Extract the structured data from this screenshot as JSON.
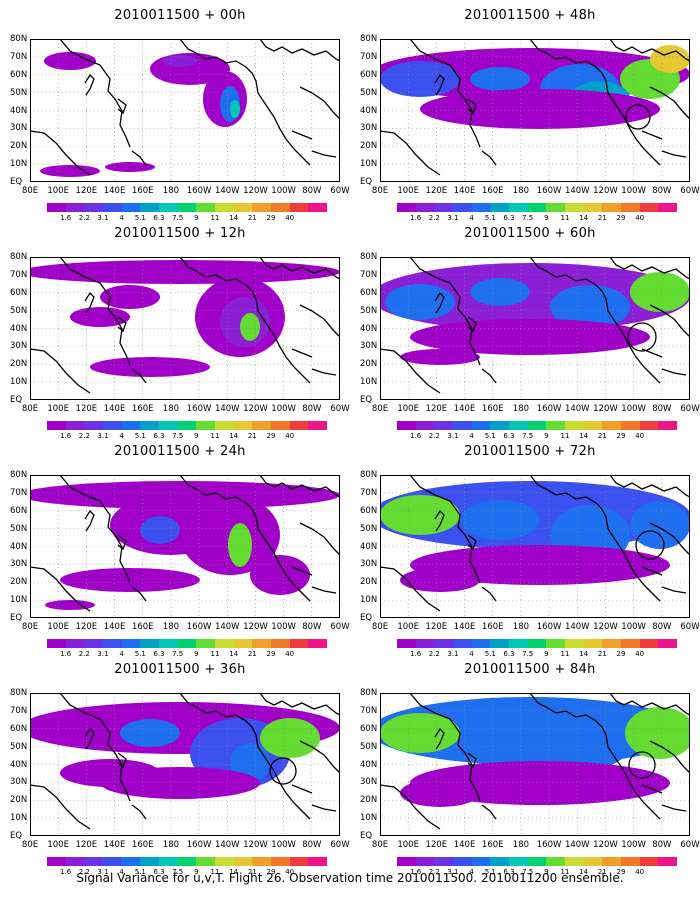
{
  "panels": [
    {
      "title": "2010011500 + 00h"
    },
    {
      "title": "2010011500 + 48h"
    },
    {
      "title": "2010011500 + 12h"
    },
    {
      "title": "2010011500 + 60h"
    },
    {
      "title": "2010011500 + 24h"
    },
    {
      "title": "2010011500 + 72h"
    },
    {
      "title": "2010011500 + 36h"
    },
    {
      "title": "2010011500 + 84h"
    }
  ],
  "lat_labels": [
    "80N",
    "70N",
    "60N",
    "50N",
    "40N",
    "30N",
    "20N",
    "10N",
    "EQ"
  ],
  "lon_labels": [
    "80E",
    "100E",
    "120E",
    "140E",
    "160E",
    "180",
    "160W",
    "140W",
    "120W",
    "100W",
    "80W",
    "60W"
  ],
  "colorbar": {
    "labels": [
      "1.6",
      "2.2",
      "3.1",
      "4",
      "5.1",
      "6.3",
      "7.5",
      "9",
      "11",
      "14",
      "21",
      "29",
      "40"
    ],
    "colors": [
      "#a000c8",
      "#8c1ed6",
      "#6e32e6",
      "#3c50f0",
      "#1e6ef0",
      "#00a0c8",
      "#00c8b4",
      "#00d26e",
      "#64dc32",
      "#c8dc32",
      "#e6c832",
      "#f0a028",
      "#f07828",
      "#f03c3c",
      "#f0148c"
    ]
  },
  "footer": "Signal Variance for u,v,T. Flight 26. Observation time 2010011500. 2010011200 ensemble."
}
